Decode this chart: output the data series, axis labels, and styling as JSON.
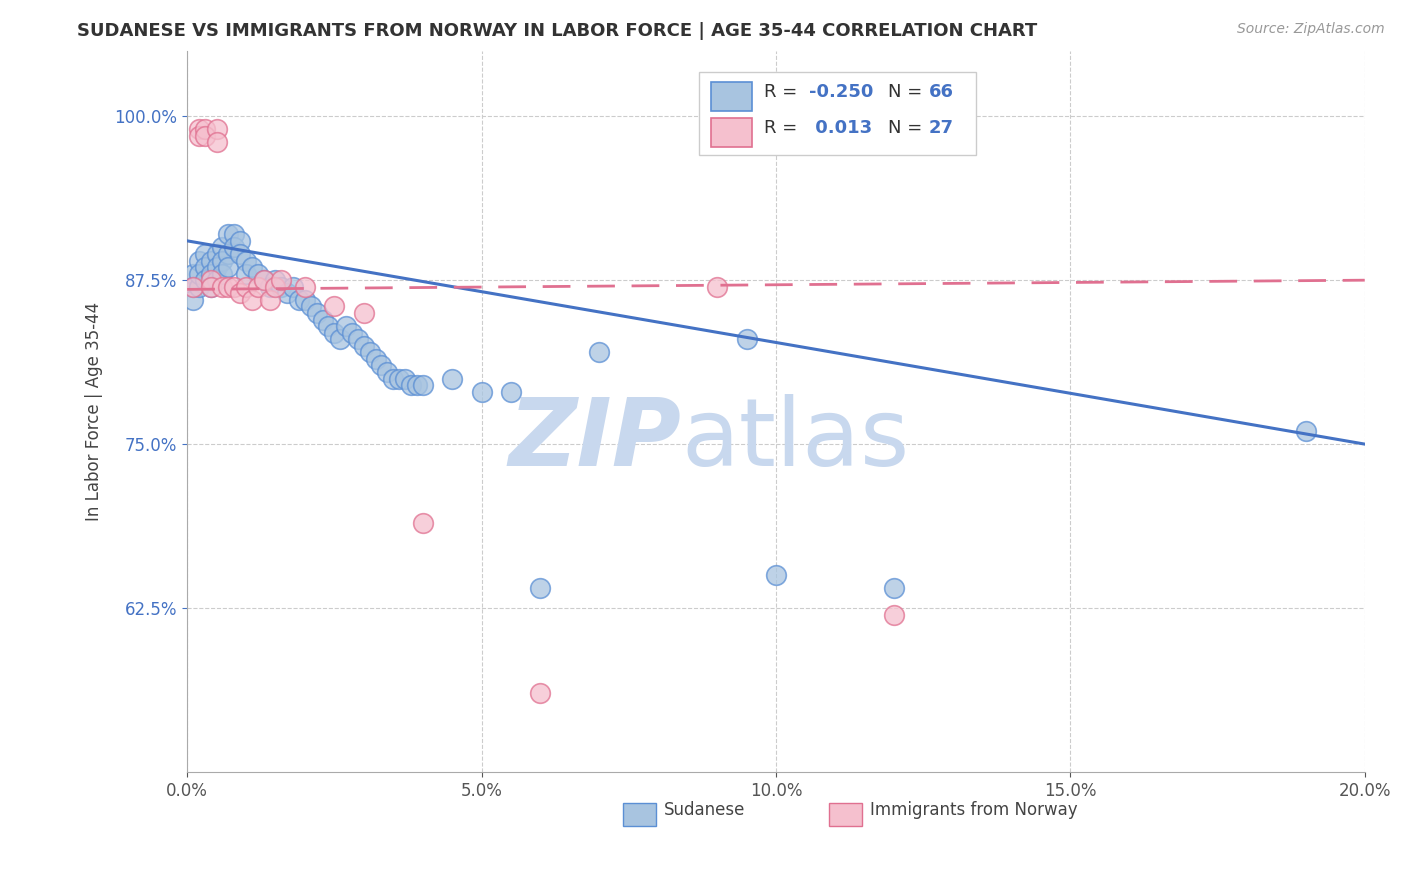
{
  "title": "SUDANESE VS IMMIGRANTS FROM NORWAY IN LABOR FORCE | AGE 35-44 CORRELATION CHART",
  "source_text": "Source: ZipAtlas.com",
  "ylabel": "In Labor Force | Age 35-44",
  "xlim": [
    0.0,
    0.2
  ],
  "ylim": [
    0.5,
    1.05
  ],
  "xticks": [
    0.0,
    0.05,
    0.1,
    0.15,
    0.2
  ],
  "xtick_labels": [
    "0.0%",
    "5.0%",
    "10.0%",
    "15.0%",
    "20.0%"
  ],
  "yticks": [
    0.625,
    0.75,
    0.875,
    1.0
  ],
  "ytick_labels": [
    "62.5%",
    "75.0%",
    "87.5%",
    "100.0%"
  ],
  "grid_color": "#cccccc",
  "background_color": "#ffffff",
  "watermark_zip": "ZIP",
  "watermark_atlas": "atlas",
  "watermark_color": "#c8d8ee",
  "blue_color": "#a8c4e0",
  "blue_edge": "#5b8fd4",
  "pink_color": "#f5c0ce",
  "pink_edge": "#e07090",
  "blue_line_color": "#4472C4",
  "pink_line_color": "#e07090",
  "blue_r": "-0.250",
  "blue_n": "66",
  "pink_r": "0.013",
  "pink_n": "27",
  "sudanese_x": [
    0.001,
    0.001,
    0.001,
    0.002,
    0.002,
    0.002,
    0.003,
    0.003,
    0.003,
    0.004,
    0.004,
    0.004,
    0.005,
    0.005,
    0.005,
    0.006,
    0.006,
    0.006,
    0.007,
    0.007,
    0.007,
    0.008,
    0.008,
    0.009,
    0.009,
    0.01,
    0.01,
    0.011,
    0.012,
    0.013,
    0.014,
    0.015,
    0.016,
    0.017,
    0.018,
    0.019,
    0.02,
    0.021,
    0.022,
    0.023,
    0.024,
    0.025,
    0.026,
    0.027,
    0.028,
    0.029,
    0.03,
    0.031,
    0.032,
    0.033,
    0.034,
    0.035,
    0.036,
    0.037,
    0.038,
    0.039,
    0.04,
    0.045,
    0.05,
    0.055,
    0.06,
    0.07,
    0.095,
    0.1,
    0.12,
    0.19
  ],
  "sudanese_y": [
    0.88,
    0.87,
    0.86,
    0.87,
    0.89,
    0.88,
    0.895,
    0.885,
    0.875,
    0.89,
    0.88,
    0.87,
    0.895,
    0.885,
    0.875,
    0.9,
    0.89,
    0.88,
    0.91,
    0.895,
    0.885,
    0.91,
    0.9,
    0.905,
    0.895,
    0.89,
    0.88,
    0.885,
    0.88,
    0.875,
    0.87,
    0.875,
    0.87,
    0.865,
    0.87,
    0.86,
    0.86,
    0.855,
    0.85,
    0.845,
    0.84,
    0.835,
    0.83,
    0.84,
    0.835,
    0.83,
    0.825,
    0.82,
    0.815,
    0.81,
    0.805,
    0.8,
    0.8,
    0.8,
    0.795,
    0.795,
    0.795,
    0.8,
    0.79,
    0.79,
    0.64,
    0.82,
    0.83,
    0.65,
    0.64,
    0.76
  ],
  "norway_x": [
    0.001,
    0.002,
    0.002,
    0.003,
    0.003,
    0.004,
    0.004,
    0.005,
    0.005,
    0.006,
    0.007,
    0.008,
    0.009,
    0.01,
    0.011,
    0.012,
    0.013,
    0.014,
    0.015,
    0.016,
    0.02,
    0.025,
    0.03,
    0.04,
    0.06,
    0.09,
    0.12
  ],
  "norway_y": [
    0.87,
    0.99,
    0.985,
    0.99,
    0.985,
    0.875,
    0.87,
    0.99,
    0.98,
    0.87,
    0.87,
    0.87,
    0.865,
    0.87,
    0.86,
    0.87,
    0.875,
    0.86,
    0.87,
    0.875,
    0.87,
    0.855,
    0.85,
    0.69,
    0.56,
    0.87,
    0.62
  ],
  "blue_line_x0": 0.0,
  "blue_line_y0": 0.905,
  "blue_line_x1": 0.2,
  "blue_line_y1": 0.75,
  "pink_line_x0": 0.0,
  "pink_line_y0": 0.868,
  "pink_line_x1": 0.2,
  "pink_line_y1": 0.875
}
